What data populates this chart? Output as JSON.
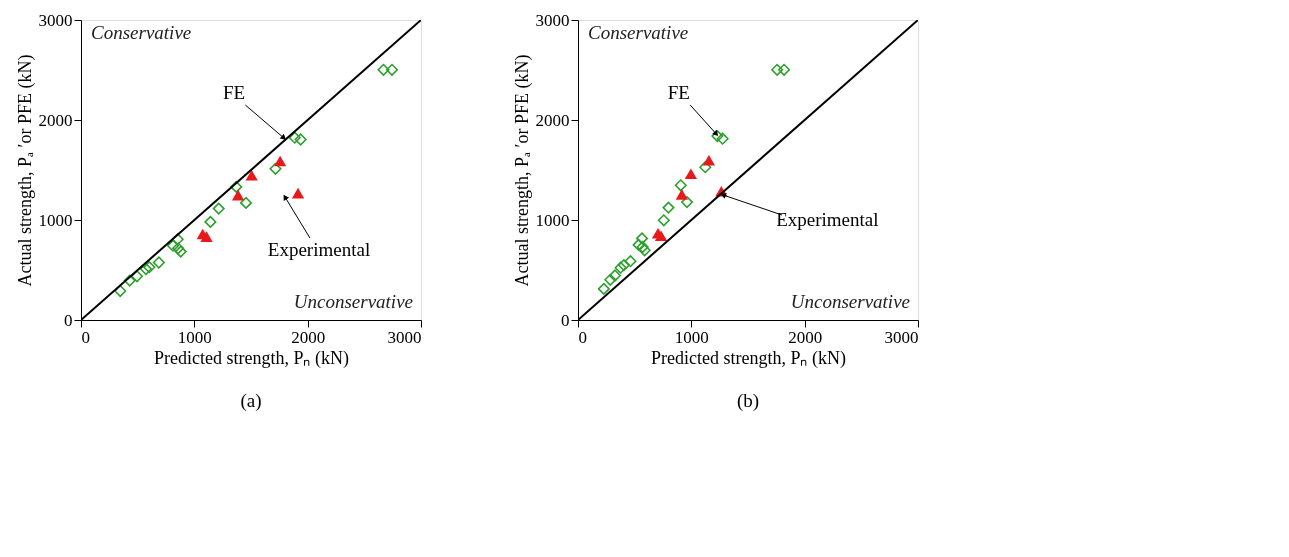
{
  "chart_data": [
    {
      "type": "scatter",
      "title": "(a)",
      "xlabel": "Predicted strength, Pₙ (kN)",
      "ylabel": "Actual strength, Pₐ ′or PFE (kN)",
      "xlim": [
        0,
        3000
      ],
      "ylim": [
        0,
        3000
      ],
      "xticks": [
        0,
        1000,
        2000,
        3000
      ],
      "yticks": [
        0,
        1000,
        2000,
        3000
      ],
      "grid": false,
      "annotations": [
        "Conservative",
        "Unconservative",
        {
          "text": "FE",
          "x": 1790,
          "y": 1820
        },
        {
          "text": "Experimental",
          "x": 1800,
          "y": 1230
        }
      ],
      "series": [
        {
          "marker": "diamond",
          "color": "#2ca02c",
          "x": [
            346,
            430,
            494,
            573,
            603,
            687,
            812,
            853,
            857,
            880,
            1142,
            1215,
            1370,
            1456,
            1716,
            1886,
            1938,
            2669,
            2744
          ],
          "values": [
            290,
            394,
            437,
            510,
            528,
            575,
            743,
            808,
            717,
            684,
            981,
            1114,
            1331,
            1171,
            1512,
            1823,
            1805,
            2502,
            2502
          ]
        },
        {
          "marker": "triangle",
          "color": "#e8191b",
          "x": [
            1074,
            1108,
            1386,
            1506,
            1757,
            1915
          ],
          "values": [
            860,
            834,
            1249,
            1448,
            1590,
            1269
          ]
        },
        {
          "type": "line",
          "color": "#000000",
          "line_style": "solid",
          "x": [
            0,
            3000
          ],
          "values": [
            0,
            3000
          ]
        }
      ]
    },
    {
      "type": "scatter",
      "title": "(b)",
      "xlabel": "Predicted strength, Pₙ (kN)",
      "ylabel": "Actual strength, Pₐ ′or PFE (kN)",
      "xlim": [
        0,
        3000
      ],
      "ylim": [
        0,
        3000
      ],
      "xticks": [
        0,
        1000,
        2000,
        3000
      ],
      "yticks": [
        0,
        1000,
        2000,
        3000
      ],
      "grid": false,
      "annotations": [
        "Conservative",
        "Unconservative",
        {
          "text": "FE",
          "x": 1220,
          "y": 1860
        },
        {
          "text": "Experimental",
          "x": 1280,
          "y": 1250
        }
      ],
      "series": [
        {
          "marker": "diamond",
          "color": "#2ca02c",
          "x": [
            228,
            285,
            326,
            376,
            405,
            463,
            535,
            565,
            570,
            588,
            757,
            798,
            907,
            962,
            1123,
            1230,
            1276,
            1757,
            1818
          ],
          "values": [
            311,
            402,
            445,
            523,
            549,
            588,
            751,
            816,
            730,
            697,
            997,
            1124,
            1347,
            1179,
            1528,
            1839,
            1813,
            2502,
            2502
          ]
        },
        {
          "marker": "triangle",
          "color": "#e8191b",
          "x": [
            706,
            733,
            916,
            996,
            1155,
            1265
          ],
          "values": [
            868,
            842,
            1256,
            1463,
            1598,
            1287
          ]
        },
        {
          "type": "line",
          "color": "#000000",
          "line_style": "solid",
          "x": [
            0,
            3000
          ],
          "values": [
            0,
            3000
          ]
        }
      ]
    }
  ]
}
